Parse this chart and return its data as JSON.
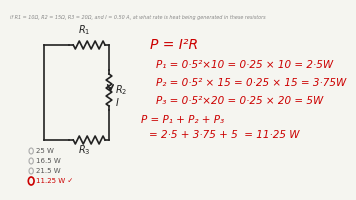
{
  "background_color": "#f5f5f0",
  "title_text": "if R1 = 10Ω, R2 = 15Ω, R3 = 20Ω, and I = 0.50 A, at what rate is heat being generated in these resistors",
  "formula_main": "P = I²R",
  "line1": "P₁ = 0·5²×10 = 0·25 × 10 = 2·5W",
  "line2": "P₂ = 0·5² × 15 = 0·25 × 15 = 3·75W",
  "line3": "P₃ = 0·5²×20 = 0·25 × 20 = 5W",
  "line4": "P = P₁ + P₂ + P₃",
  "line5": "= 2·5 + 3·75 + 5  = 11·25 W",
  "options": [
    "25 W",
    "16.5 W",
    "21.5 W",
    "11.25 W ✓"
  ],
  "correct_index": 3,
  "text_color": "#cc0000",
  "circuit_color": "#222222",
  "option_color": "#555555"
}
